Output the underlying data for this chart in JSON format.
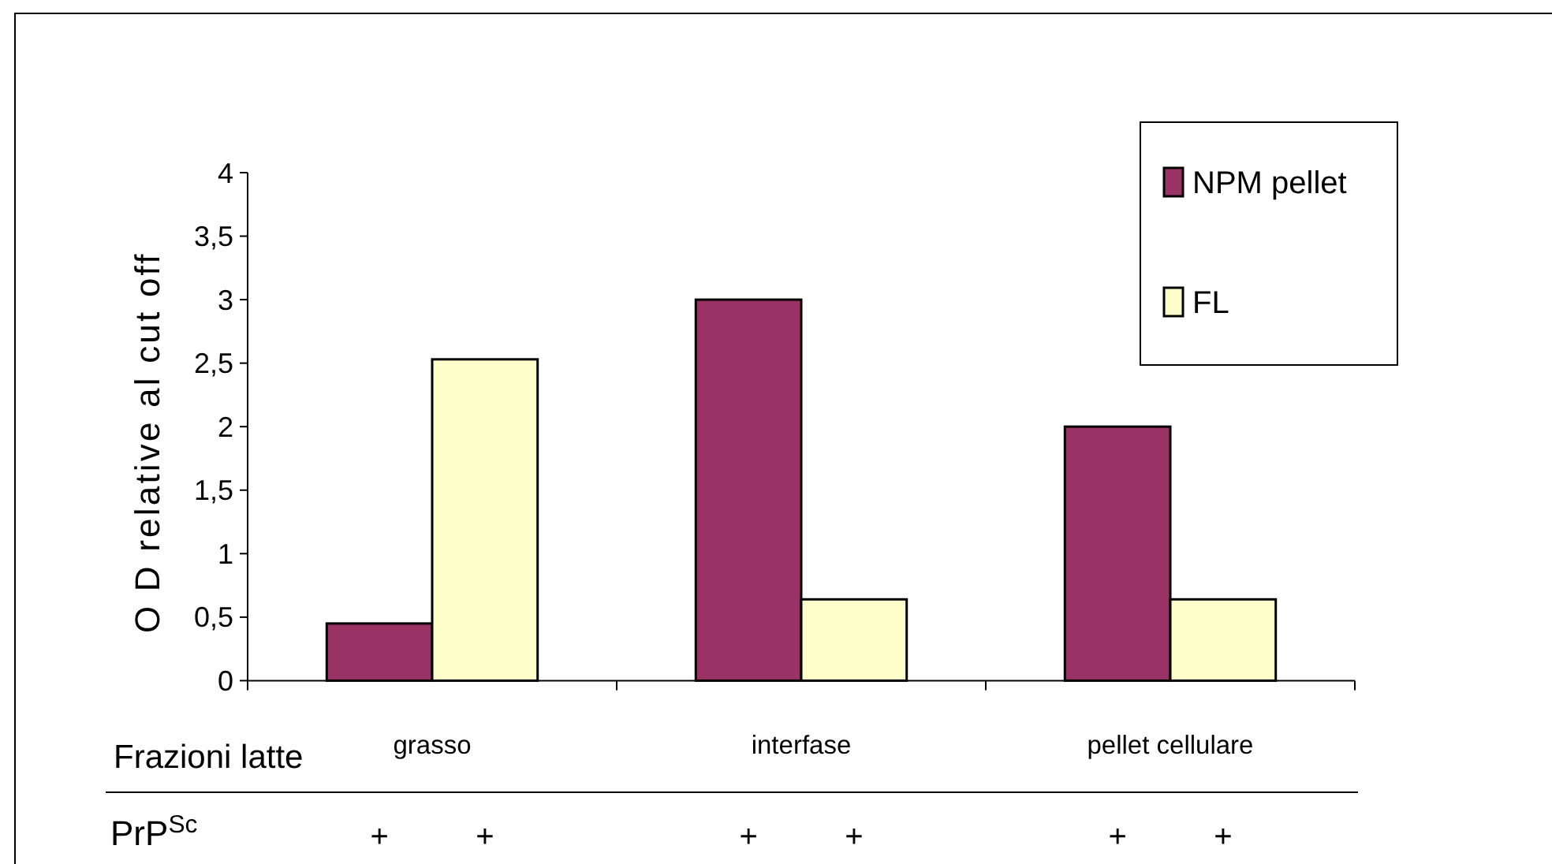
{
  "chart_data": {
    "type": "bar",
    "categories": [
      "grasso",
      "interfase",
      "pellet cellulare"
    ],
    "series": [
      {
        "name": "NPM pellet",
        "color": "#993366",
        "values": [
          0.45,
          3,
          2
        ]
      },
      {
        "name": "FL",
        "color": "#ffffcc",
        "values": [
          2.53,
          0.64,
          0.64
        ]
      }
    ],
    "xlabel": "Frazioni latte",
    "ylabel": "O D relative al cut off",
    "ylim": [
      0,
      4
    ],
    "yticks": [
      0,
      {
        "value": 0.5,
        "label": "0,5"
      },
      1,
      {
        "value": 1.5,
        "label": "1,5"
      },
      2,
      {
        "value": 2.5,
        "label": "2,5"
      },
      3,
      {
        "value": 3.5,
        "label": "3,5"
      },
      4
    ],
    "legend": "top right",
    "annotations": [
      "PrP$^{Sc}$",
      "+",
      "+",
      "+",
      "+",
      "+",
      "+"
    ]
  }
}
